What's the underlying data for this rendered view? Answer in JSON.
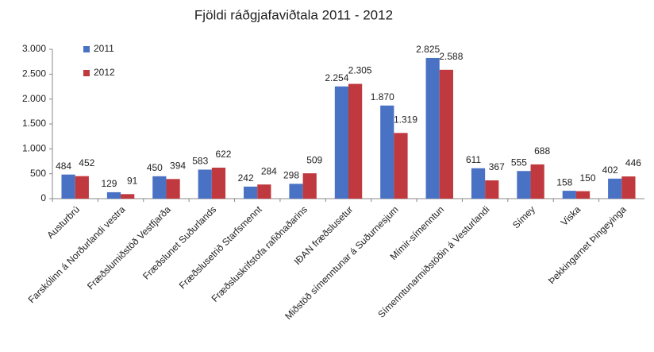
{
  "chart_data": {
    "type": "bar",
    "title": "Fjöldi ráðgjafaviðtala 2011 - 2012",
    "categories": [
      "Austurbrú",
      "Farskólinn á Norðurlandi vestra",
      "Fræðslumiðstöð Vestfjarða",
      "Fræðslunet Suðurlands",
      "Fræðslusetrið Starfsmennt",
      "Fræðsluskrifstofa rafiðnaðarins",
      "IÐAN fræðslusetur",
      "Miðstöð símenntunar á Suðurnesjum",
      "Mímir-símenntun",
      "Símenntunarmiðstöðin á Vesturlandi",
      "Símey",
      "Viska",
      "Þekkingarnet Þingeyinga"
    ],
    "series": [
      {
        "name": "2011",
        "color": "#4a72c4",
        "values": [
          484,
          129,
          450,
          583,
          242,
          298,
          2254,
          1870,
          2825,
          611,
          555,
          158,
          402
        ],
        "value_labels": [
          "484",
          "129",
          "450",
          "583",
          "242",
          "298",
          "2.254",
          "1.870",
          "2.825",
          "611",
          "555",
          "158",
          "402"
        ]
      },
      {
        "name": "2012",
        "color": "#c0393e",
        "values": [
          452,
          91,
          394,
          622,
          284,
          509,
          2305,
          1319,
          2588,
          367,
          688,
          150,
          446
        ],
        "value_labels": [
          "452",
          "91",
          "394",
          "622",
          "284",
          "509",
          "2.305",
          "1.319",
          "2.588",
          "367",
          "688",
          "150",
          "446"
        ]
      }
    ],
    "ylim": [
      0,
      3000
    ],
    "yticks": [
      0,
      500,
      {
        "value": 1000,
        "label": "1.000"
      },
      {
        "value": 1500,
        "label": "1.500"
      },
      {
        "value": 2000,
        "label": "2.000"
      },
      {
        "value": 2500,
        "label": "2.500"
      },
      {
        "value": 3000,
        "label": "3.000"
      }
    ],
    "grid": false,
    "legend": "top-left"
  }
}
